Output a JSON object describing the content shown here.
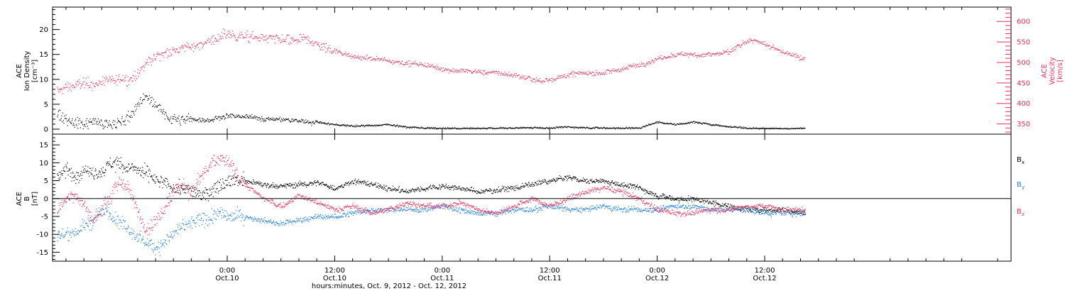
{
  "colors": {
    "density": "#000000",
    "velocity": "#e8305a",
    "bx": "#000000",
    "by": "#1f7fe0",
    "bz": "#e8305a",
    "axis": "#000000"
  },
  "xaxis": {
    "label": "hours:minutes, Oct.  9, 2012 - Oct. 12, 2012",
    "range_hours": [
      -19.5,
      87.5
    ],
    "ticks": [
      {
        "hour": 0,
        "time": "0:00",
        "date": "Oct.10"
      },
      {
        "hour": 12,
        "time": "12:00",
        "date": "Oct.10"
      },
      {
        "hour": 24,
        "time": "0:00",
        "date": "Oct.11"
      },
      {
        "hour": 36,
        "time": "12:00",
        "date": "Oct.11"
      },
      {
        "hour": 48,
        "time": "0:00",
        "date": "Oct.12"
      },
      {
        "hour": 60,
        "time": "12:00",
        "date": "Oct.12"
      }
    ]
  },
  "chart_data": [
    {
      "type": "scatter",
      "panel": "top",
      "left_axis": {
        "title_lines": [
          "ACE",
          "Ion Density",
          "[cm⁻³]"
        ],
        "ylim": [
          -1,
          24.5
        ],
        "ticks": [
          0,
          5,
          10,
          15,
          20
        ]
      },
      "right_axis": {
        "title_lines": [
          "ACE",
          "Velocity",
          "[km/s]"
        ],
        "ylim": [
          325,
          635
        ],
        "ticks": [
          350,
          400,
          450,
          500,
          550,
          600
        ]
      },
      "series": [
        {
          "name": "",
          "axis": "left",
          "color_key": "density",
          "x_hours": [
            -19,
            -17,
            -16,
            -15,
            -14,
            -13,
            -12,
            -11,
            -10,
            -9,
            -8,
            -7,
            -6,
            -4,
            -2,
            0,
            2,
            4,
            6,
            8,
            10,
            12,
            14,
            16,
            18,
            20,
            22,
            24,
            26,
            28,
            30,
            32,
            34,
            36,
            38,
            40,
            42,
            44,
            46,
            48,
            50,
            52,
            54,
            56,
            58,
            60,
            62,
            63.5,
            64.5
          ],
          "values": [
            3,
            1.5,
            1,
            2,
            1,
            0.8,
            1.5,
            2.5,
            5,
            6.5,
            5,
            3,
            2,
            2,
            2,
            2.8,
            2.5,
            2.2,
            2,
            1.7,
            1.5,
            1,
            0.7,
            0.8,
            1,
            0.5,
            0.3,
            0.2,
            0.2,
            0.2,
            0.3,
            0.3,
            0.4,
            0.3,
            0.5,
            0.4,
            0.3,
            0.3,
            0.3,
            1.5,
            1,
            1.5,
            1,
            0.6,
            0.3,
            0.2,
            0.2,
            0.2,
            0.2
          ]
        },
        {
          "name": "",
          "axis": "right",
          "color_key": "velocity",
          "x_hours": [
            -19,
            -18,
            -17,
            -16,
            -15,
            -14,
            -13,
            -12,
            -11,
            -10,
            -9,
            -8,
            -7,
            -6,
            -5,
            -4,
            -3,
            -2,
            -1,
            0,
            1,
            2,
            3,
            4,
            5,
            6,
            7,
            8,
            9,
            10,
            11,
            12,
            14,
            16,
            18,
            20,
            22,
            24,
            26,
            28,
            30,
            32,
            34,
            35,
            36,
            38,
            40,
            42,
            44,
            46,
            48,
            50,
            52,
            54,
            56,
            57,
            58,
            59,
            60,
            62,
            64.5
          ],
          "values": [
            430,
            440,
            445,
            450,
            445,
            455,
            455,
            460,
            462,
            470,
            500,
            515,
            525,
            530,
            535,
            540,
            545,
            555,
            560,
            570,
            565,
            565,
            560,
            560,
            558,
            555,
            552,
            555,
            555,
            545,
            535,
            530,
            515,
            510,
            505,
            500,
            495,
            485,
            480,
            478,
            475,
            470,
            460,
            455,
            460,
            470,
            475,
            475,
            485,
            495,
            510,
            520,
            520,
            520,
            525,
            540,
            550,
            555,
            545,
            525,
            510
          ]
        }
      ]
    },
    {
      "type": "scatter",
      "panel": "bottom",
      "left_axis": {
        "title_lines": [
          "ACE",
          "B",
          "[nT]"
        ],
        "ylim": [
          -17.5,
          18
        ],
        "ticks": [
          -15,
          -10,
          -5,
          0,
          5,
          10,
          15
        ]
      },
      "zero_line": true,
      "series": [
        {
          "name": "Bx",
          "label_main": "B",
          "label_sub": "x",
          "color_key": "bx",
          "x_hours": [
            -19,
            -18,
            -17,
            -16,
            -15,
            -14,
            -13,
            -12,
            -11,
            -10,
            -9,
            -8,
            -7,
            -6,
            -5,
            -4,
            -3,
            -2,
            -1,
            0,
            2,
            4,
            6,
            8,
            10,
            12,
            14,
            16,
            18,
            20,
            22,
            24,
            26,
            28,
            30,
            32,
            34,
            36,
            38,
            40,
            42,
            44,
            46,
            48,
            50,
            52,
            54,
            56,
            58,
            60,
            62,
            64.5
          ],
          "values": [
            7,
            8,
            6,
            9,
            7,
            8,
            10,
            10,
            9,
            8,
            7,
            5,
            4,
            3,
            3,
            2,
            1,
            2,
            4,
            5,
            5,
            4,
            3.5,
            4,
            4.5,
            3,
            5,
            4,
            3,
            2,
            3,
            3.5,
            3,
            2,
            2.5,
            3,
            4,
            5,
            6,
            5,
            5,
            4,
            3,
            1,
            0,
            0,
            -1,
            -2,
            -3,
            -3,
            -3,
            -4
          ]
        },
        {
          "name": "By",
          "label_main": "B",
          "label_sub": "y",
          "color_key": "by",
          "x_hours": [
            -19,
            -18,
            -17,
            -16,
            -15,
            -14,
            -13,
            -12,
            -11,
            -10,
            -9,
            -8,
            -7,
            -6,
            -5,
            -4,
            -3,
            -2,
            -1,
            0,
            2,
            4,
            6,
            8,
            10,
            12,
            14,
            16,
            18,
            20,
            22,
            24,
            26,
            28,
            30,
            32,
            34,
            36,
            38,
            40,
            42,
            44,
            46,
            48,
            50,
            52,
            54,
            56,
            58,
            60,
            62,
            64.5
          ],
          "values": [
            -10,
            -10,
            -9,
            -8,
            -6,
            -3,
            -4,
            -6,
            -8,
            -10,
            -12,
            -14,
            -12,
            -10,
            -8,
            -7,
            -6,
            -5,
            -4,
            -5,
            -5,
            -6,
            -7,
            -6,
            -5,
            -5,
            -4,
            -3,
            -3,
            -3,
            -3,
            -2,
            -3,
            -4,
            -4,
            -3,
            -3,
            -2,
            -3,
            -3,
            -2,
            -3,
            -3,
            -3,
            -2,
            -2,
            -3,
            -3,
            -3,
            -4,
            -4,
            -4
          ]
        },
        {
          "name": "Bz",
          "label_main": "B",
          "label_sub": "z",
          "color_key": "bz",
          "x_hours": [
            -19,
            -18,
            -17,
            -16,
            -15,
            -14,
            -13,
            -12,
            -11,
            -10,
            -9,
            -8,
            -7,
            -6,
            -5,
            -4,
            -3,
            -2,
            -1,
            0,
            1,
            2,
            4,
            6,
            8,
            10,
            12,
            14,
            16,
            18,
            20,
            22,
            24,
            26,
            28,
            30,
            32,
            34,
            36,
            38,
            40,
            42,
            44,
            46,
            48,
            50,
            52,
            54,
            56,
            58,
            60,
            62,
            64.5
          ],
          "values": [
            -3,
            0,
            2,
            -2,
            -6,
            -3,
            1,
            5,
            3,
            -4,
            -8,
            -6,
            -2,
            2,
            4,
            2,
            6,
            9,
            11,
            10,
            7,
            4,
            0,
            -2,
            1,
            -1,
            -3,
            -2,
            -4,
            -3,
            -1,
            -2,
            -2,
            -1,
            -3,
            -4,
            -2,
            0,
            -2,
            0,
            2,
            3,
            2,
            0,
            -3,
            -4,
            -4,
            -3,
            -3,
            -2,
            -2,
            -3,
            -3
          ]
        }
      ]
    }
  ]
}
